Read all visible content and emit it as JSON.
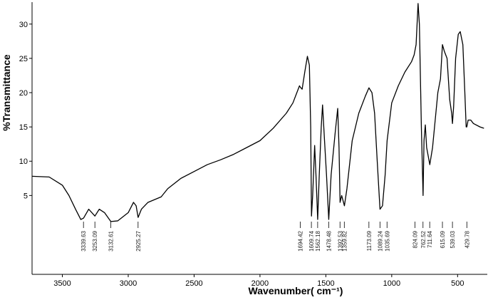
{
  "chart_data": {
    "type": "line",
    "x_label": "Wavenumber( cm⁻¹)",
    "y_label": "%Transmittance",
    "xlim": [
      3730,
      280
    ],
    "ylim": [
      -6.5,
      33.2
    ],
    "xticks": [
      3500,
      3000,
      2500,
      2000,
      1500,
      1000,
      500
    ],
    "yticks": [
      5,
      10,
      15,
      20,
      25,
      30
    ],
    "color": "#000000",
    "x": [
      3730,
      3600,
      3500,
      3450,
      3400,
      3360,
      3339,
      3300,
      3253,
      3220,
      3180,
      3132,
      3080,
      3000,
      2960,
      2940,
      2925,
      2900,
      2850,
      2750,
      2700,
      2600,
      2500,
      2400,
      2300,
      2200,
      2100,
      2000,
      1900,
      1800,
      1750,
      1720,
      1700,
      1694,
      1680,
      1660,
      1640,
      1625,
      1615,
      1609,
      1600,
      1585,
      1575,
      1562,
      1550,
      1535,
      1525,
      1510,
      1495,
      1478,
      1460,
      1430,
      1410,
      1400,
      1392,
      1380,
      1359,
      1340,
      1300,
      1250,
      1200,
      1173,
      1150,
      1130,
      1110,
      1089,
      1070,
      1050,
      1035,
      1000,
      950,
      900,
      850,
      830,
      815,
      800,
      790,
      775,
      762,
      755,
      745,
      735,
      711,
      690,
      670,
      650,
      640,
      630,
      615,
      600,
      580,
      560,
      545,
      539,
      530,
      515,
      495,
      480,
      460,
      445,
      435,
      430,
      420,
      400,
      380,
      330,
      300
    ],
    "y": [
      7.8,
      7.7,
      6.5,
      5.0,
      3.0,
      1.5,
      1.7,
      3.0,
      2.0,
      3.0,
      2.5,
      1.2,
      1.3,
      2.5,
      4.0,
      3.5,
      1.8,
      3.0,
      4.0,
      4.8,
      6.0,
      7.5,
      8.5,
      9.5,
      10.2,
      11.0,
      12.0,
      13.0,
      14.8,
      17.0,
      18.5,
      20.0,
      21.0,
      20.8,
      20.5,
      23,
      25.3,
      24,
      15,
      2.0,
      5,
      12.3,
      8,
      1.5,
      8,
      15,
      18.2,
      13,
      8,
      1.5,
      8,
      14,
      17.7,
      12,
      4.0,
      5,
      3.5,
      6,
      13,
      17,
      19.5,
      20.7,
      20,
      17,
      10,
      3.0,
      3.5,
      8,
      13,
      18.5,
      21,
      23,
      24.5,
      25.5,
      27,
      33.0,
      30,
      15,
      5.0,
      13,
      15.3,
      12,
      9.5,
      12,
      16,
      20,
      21,
      22,
      27,
      26,
      25,
      19,
      17,
      15.5,
      18,
      25,
      28.5,
      28.9,
      27,
      20,
      15,
      15.0,
      16,
      16,
      15.5,
      15.0,
      14.8
    ],
    "peaks": [
      3339.63,
      3253.09,
      3132.61,
      2925.27,
      1694.42,
      1609.74,
      1562.18,
      1478.48,
      1392.53,
      1359.82,
      1173.09,
      1089.24,
      1035.69,
      824.09,
      762.52,
      711.64,
      615.09,
      539.03,
      429.78
    ]
  }
}
